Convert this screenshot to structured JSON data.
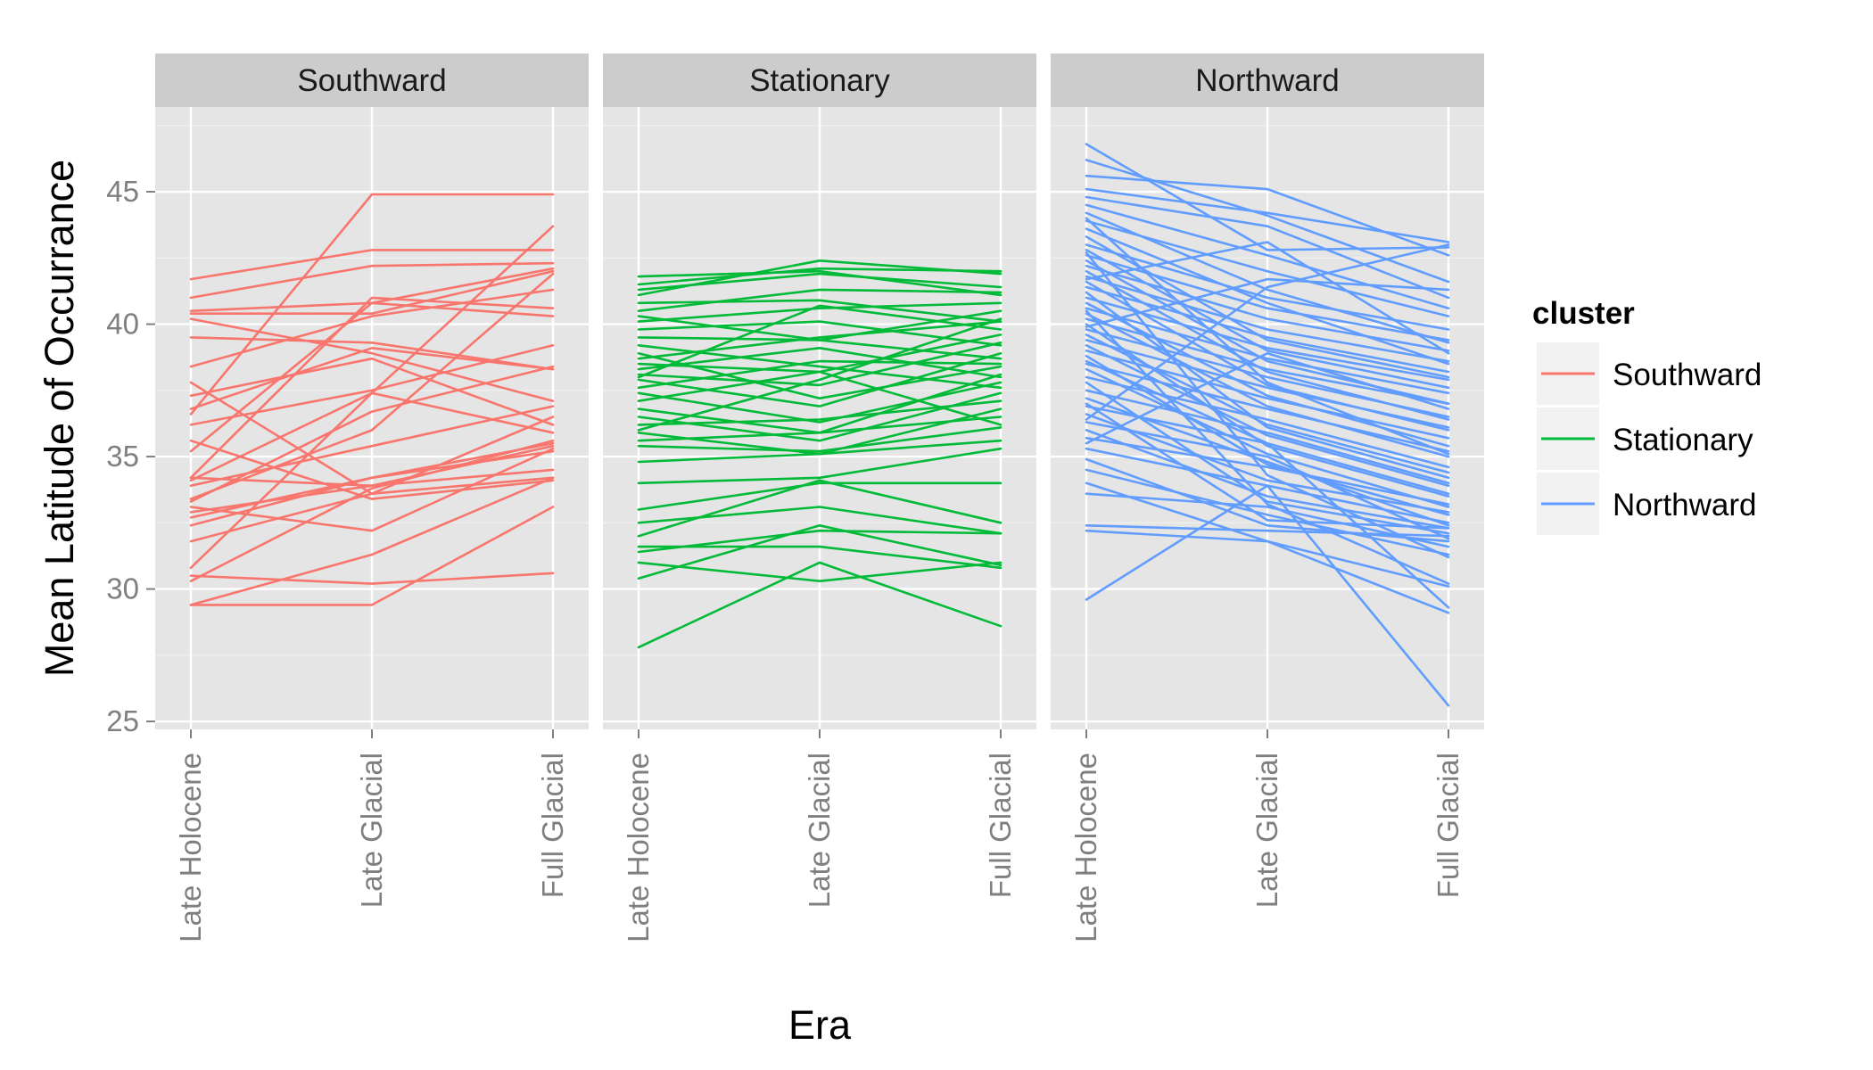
{
  "chart_data": {
    "type": "line",
    "facet_variable": "cluster",
    "facets": [
      {
        "label": "Southward",
        "color": "#F8766D",
        "series": [
          {
            "values": [
              29.4,
              29.4,
              33.1
            ]
          },
          {
            "values": [
              30.5,
              30.2,
              30.6
            ]
          },
          {
            "values": [
              29.4,
              31.3,
              34.2
            ]
          },
          {
            "values": [
              30.3,
              33.8,
              35.6
            ]
          },
          {
            "values": [
              31.8,
              33.6,
              34.2
            ]
          },
          {
            "values": [
              32.4,
              34.2,
              35.2
            ]
          },
          {
            "values": [
              32.9,
              33.9,
              34.5
            ]
          },
          {
            "values": [
              33.1,
              32.2,
              35.3
            ]
          },
          {
            "values": [
              33.3,
              36.7,
              38.4
            ]
          },
          {
            "values": [
              33.9,
              35.4,
              36.9
            ]
          },
          {
            "values": [
              34.2,
              33.9,
              35.4
            ]
          },
          {
            "values": [
              34.1,
              37.4,
              35.9
            ]
          },
          {
            "values": [
              35.6,
              33.4,
              34.1
            ]
          },
          {
            "values": [
              36.2,
              37.5,
              39.2
            ]
          },
          {
            "values": [
              36.8,
              39.1,
              38.3
            ]
          },
          {
            "values": [
              37.3,
              38.7,
              36.2
            ]
          },
          {
            "values": [
              37.8,
              33.6,
              36.5
            ]
          },
          {
            "values": [
              38.4,
              40.3,
              41.3
            ]
          },
          {
            "values": [
              39.5,
              39.3,
              38.3
            ]
          },
          {
            "values": [
              40.2,
              38.9,
              37.1
            ]
          },
          {
            "values": [
              40.5,
              40.8,
              40.3
            ]
          },
          {
            "values": [
              40.4,
              40.4,
              42.0
            ]
          },
          {
            "values": [
              41.0,
              42.2,
              42.3
            ]
          },
          {
            "values": [
              41.7,
              42.8,
              42.8
            ]
          },
          {
            "values": [
              36.6,
              44.9,
              44.9
            ]
          },
          {
            "values": [
              34.2,
              41.0,
              40.6
            ]
          },
          {
            "values": [
              32.7,
              34.2,
              35.5
            ]
          },
          {
            "values": [
              33.4,
              36.0,
              41.9
            ]
          },
          {
            "values": [
              35.2,
              40.8,
              42.1
            ]
          },
          {
            "values": [
              30.8,
              37.4,
              43.7
            ]
          }
        ]
      },
      {
        "label": "Stationary",
        "color": "#00BA38",
        "series": [
          {
            "values": [
              27.8,
              31.0,
              28.6
            ]
          },
          {
            "values": [
              30.4,
              32.4,
              30.9
            ]
          },
          {
            "values": [
              31.0,
              30.3,
              31.0
            ]
          },
          {
            "values": [
              31.4,
              32.2,
              32.1
            ]
          },
          {
            "values": [
              31.6,
              31.6,
              30.8
            ]
          },
          {
            "values": [
              32.0,
              34.1,
              32.5
            ]
          },
          {
            "values": [
              32.5,
              33.1,
              32.1
            ]
          },
          {
            "values": [
              33.0,
              34.0,
              34.0
            ]
          },
          {
            "values": [
              34.0,
              34.2,
              35.3
            ]
          },
          {
            "values": [
              34.8,
              35.1,
              35.6
            ]
          },
          {
            "values": [
              35.4,
              35.2,
              36.1
            ]
          },
          {
            "values": [
              35.6,
              35.9,
              36.5
            ]
          },
          {
            "values": [
              35.9,
              35.1,
              36.8
            ]
          },
          {
            "values": [
              36.2,
              36.4,
              37.1
            ]
          },
          {
            "values": [
              36.5,
              35.6,
              37.4
            ]
          },
          {
            "values": [
              36.8,
              35.9,
              38.1
            ]
          },
          {
            "values": [
              37.1,
              38.2,
              36.2
            ]
          },
          {
            "values": [
              37.4,
              36.3,
              37.8
            ]
          },
          {
            "values": [
              37.6,
              38.6,
              38.5
            ]
          },
          {
            "values": [
              37.9,
              36.9,
              38.9
            ]
          },
          {
            "values": [
              38.1,
              37.7,
              39.3
            ]
          },
          {
            "values": [
              38.3,
              39.1,
              38.0
            ]
          },
          {
            "values": [
              38.5,
              38.2,
              39.6
            ]
          },
          {
            "values": [
              38.7,
              39.5,
              40.1
            ]
          },
          {
            "values": [
              38.9,
              37.2,
              38.4
            ]
          },
          {
            "values": [
              39.2,
              38.4,
              37.6
            ]
          },
          {
            "values": [
              39.5,
              39.4,
              40.5
            ]
          },
          {
            "values": [
              39.8,
              40.1,
              39.2
            ]
          },
          {
            "values": [
              40.1,
              40.6,
              40.8
            ]
          },
          {
            "values": [
              40.3,
              39.4,
              38.7
            ]
          },
          {
            "values": [
              40.5,
              41.3,
              41.2
            ]
          },
          {
            "values": [
              40.8,
              40.9,
              40.1
            ]
          },
          {
            "values": [
              41.1,
              42.4,
              41.9
            ]
          },
          {
            "values": [
              41.3,
              41.9,
              41.4
            ]
          },
          {
            "values": [
              41.5,
              42.1,
              42.0
            ]
          },
          {
            "values": [
              41.8,
              42.0,
              41.1
            ]
          },
          {
            "values": [
              38.0,
              40.7,
              39.8
            ]
          },
          {
            "values": [
              36.0,
              37.9,
              40.2
            ]
          }
        ]
      },
      {
        "label": "Northward",
        "color": "#619CFF",
        "series": [
          {
            "values": [
              29.6,
              33.9,
              25.6
            ]
          },
          {
            "values": [
              32.2,
              31.8,
              29.1
            ]
          },
          {
            "values": [
              32.4,
              32.2,
              32.0
            ]
          },
          {
            "values": [
              33.6,
              33.1,
              31.6
            ]
          },
          {
            "values": [
              34.0,
              31.8,
              30.1
            ]
          },
          {
            "values": [
              34.5,
              32.8,
              31.3
            ]
          },
          {
            "values": [
              34.9,
              32.4,
              31.8
            ]
          },
          {
            "values": [
              35.3,
              33.9,
              32.5
            ]
          },
          {
            "values": [
              35.7,
              34.6,
              33.2
            ]
          },
          {
            "values": [
              36.0,
              33.5,
              32.3
            ]
          },
          {
            "values": [
              36.3,
              35.0,
              31.9
            ]
          },
          {
            "values": [
              36.6,
              34.1,
              32.9
            ]
          },
          {
            "values": [
              36.9,
              35.5,
              33.6
            ]
          },
          {
            "values": [
              37.2,
              34.8,
              32.4
            ]
          },
          {
            "values": [
              37.5,
              35.9,
              34.0
            ]
          },
          {
            "values": [
              37.8,
              33.3,
              32.1
            ]
          },
          {
            "values": [
              38.0,
              36.4,
              34.6
            ]
          },
          {
            "values": [
              38.3,
              35.1,
              33.1
            ]
          },
          {
            "values": [
              38.5,
              36.8,
              35.2
            ]
          },
          {
            "values": [
              38.8,
              34.7,
              32.8
            ]
          },
          {
            "values": [
              39.0,
              37.2,
              35.7
            ]
          },
          {
            "values": [
              39.2,
              35.8,
              33.9
            ]
          },
          {
            "values": [
              39.4,
              37.6,
              36.1
            ]
          },
          {
            "values": [
              39.6,
              36.2,
              34.4
            ]
          },
          {
            "values": [
              39.8,
              38.0,
              36.5
            ]
          },
          {
            "values": [
              40.0,
              35.4,
              33.5
            ]
          },
          {
            "values": [
              40.2,
              38.3,
              37.0
            ]
          },
          {
            "values": [
              40.4,
              36.9,
              35.0
            ]
          },
          {
            "values": [
              40.6,
              38.7,
              37.4
            ]
          },
          {
            "values": [
              40.8,
              37.3,
              35.4
            ]
          },
          {
            "values": [
              41.0,
              39.1,
              37.9
            ]
          },
          {
            "values": [
              41.2,
              36.1,
              34.2
            ]
          },
          {
            "values": [
              41.4,
              39.5,
              38.2
            ]
          },
          {
            "values": [
              41.6,
              37.7,
              36.0
            ]
          },
          {
            "values": [
              41.8,
              39.8,
              38.6
            ]
          },
          {
            "values": [
              42.0,
              38.2,
              36.4
            ]
          },
          {
            "values": [
              42.2,
              40.2,
              39.0
            ]
          },
          {
            "values": [
              42.4,
              38.6,
              37.0
            ]
          },
          {
            "values": [
              42.6,
              40.6,
              39.4
            ]
          },
          {
            "values": [
              42.8,
              39.0,
              37.6
            ]
          },
          {
            "values": [
              43.0,
              41.0,
              39.8
            ]
          },
          {
            "values": [
              43.3,
              39.4,
              38.0
            ]
          },
          {
            "values": [
              43.6,
              40.8,
              38.5
            ]
          },
          {
            "values": [
              43.9,
              42.0,
              40.3
            ]
          },
          {
            "values": [
              44.2,
              41.3,
              39.3
            ]
          },
          {
            "values": [
              44.5,
              42.6,
              40.6
            ]
          },
          {
            "values": [
              44.8,
              43.7,
              41.0
            ]
          },
          {
            "values": [
              45.1,
              44.2,
              43.1
            ]
          },
          {
            "values": [
              45.6,
              45.1,
              42.6
            ]
          },
          {
            "values": [
              46.2,
              44.1,
              41.6
            ]
          },
          {
            "values": [
              46.8,
              42.8,
              42.9
            ]
          },
          {
            "values": [
              36.4,
              41.4,
              43.0
            ]
          },
          {
            "values": [
              38.6,
              35.5,
              29.3
            ]
          },
          {
            "values": [
              40.5,
              33.2,
              30.2
            ]
          },
          {
            "values": [
              42.7,
              34.3,
              31.2
            ]
          },
          {
            "values": [
              37.0,
              32.6,
              32.3
            ]
          },
          {
            "values": [
              44.0,
              37.8,
              35.1
            ]
          },
          {
            "values": [
              39.9,
              41.7,
              41.3
            ]
          },
          {
            "values": [
              35.5,
              38.9,
              36.8
            ]
          },
          {
            "values": [
              41.7,
              43.1,
              38.9
            ]
          }
        ]
      }
    ],
    "x": [
      "Late Holocene",
      "Late Glacial",
      "Full Glacial"
    ],
    "xlabel": "Era",
    "ylabel": "Mean Latitude of Occurrance",
    "ylim": [
      24.7,
      48.2
    ],
    "yticks": [
      25,
      30,
      35,
      40,
      45
    ],
    "grid": true,
    "legend": {
      "title": "cluster",
      "position": "right",
      "entries": [
        {
          "label": "Southward",
          "color": "#F8766D"
        },
        {
          "label": "Stationary",
          "color": "#00BA38"
        },
        {
          "label": "Northward",
          "color": "#619CFF"
        }
      ]
    }
  }
}
